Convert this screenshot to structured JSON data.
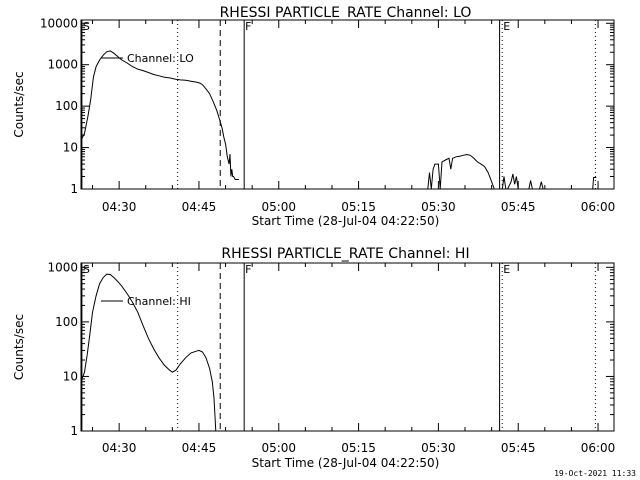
{
  "footer": {
    "timestamp": "19-Oct-2021 11:33"
  },
  "chart_data": [
    {
      "type": "line",
      "title": "RHESSI PARTICLE_RATE Channel: LO",
      "ylabel": "Counts/sec",
      "xlabel": "Start Time (28-Jul-04 04:22:50)",
      "y_scale": "log",
      "ylim": [
        1,
        12000
      ],
      "xlim": [
        "04:22:50",
        "06:03:00"
      ],
      "yticks": [
        1,
        10,
        100,
        1000,
        10000
      ],
      "yticklabels": [
        "1",
        "10",
        "100",
        "1000",
        "10000"
      ],
      "xticks": [
        "04:30",
        "04:45",
        "05:00",
        "05:15",
        "05:30",
        "05:45",
        "06:00"
      ],
      "legend": "Channel: LO",
      "markers": [
        {
          "time": "04:23:00",
          "label": "S",
          "style": "solid"
        },
        {
          "time": "04:41:00",
          "label": "",
          "style": "dotted"
        },
        {
          "time": "04:49:00",
          "label": "",
          "style": "dashed"
        },
        {
          "time": "04:53:30",
          "label": "F",
          "style": "solid"
        },
        {
          "time": "05:41:30",
          "label": "",
          "style": "solid"
        },
        {
          "time": "05:42:00",
          "label": "E",
          "style": "dotted"
        },
        {
          "time": "05:59:30",
          "label": "",
          "style": "dotted"
        }
      ],
      "series": [
        {
          "segments": [
            [
              [
                "04:22:50",
                15
              ],
              [
                "04:23:30",
                22
              ],
              [
                "04:24:10",
                60
              ],
              [
                "04:24:40",
                150
              ],
              [
                "04:25:10",
                500
              ],
              [
                "04:25:40",
                900
              ],
              [
                "04:26:20",
                1300
              ],
              [
                "04:27:00",
                1700
              ],
              [
                "04:27:40",
                2050
              ],
              [
                "04:28:20",
                2150
              ],
              [
                "04:29:00",
                1900
              ],
              [
                "04:29:40",
                1600
              ],
              [
                "04:30:30",
                1300
              ],
              [
                "04:31:30",
                1100
              ],
              [
                "04:32:30",
                900
              ],
              [
                "04:33:30",
                780
              ],
              [
                "04:34:30",
                720
              ],
              [
                "04:35:30",
                650
              ],
              [
                "04:36:30",
                580
              ],
              [
                "04:37:30",
                540
              ],
              [
                "04:38:30",
                500
              ],
              [
                "04:39:30",
                480
              ],
              [
                "04:40:30",
                450
              ],
              [
                "04:41:30",
                430
              ],
              [
                "04:42:30",
                420
              ],
              [
                "04:43:30",
                400
              ],
              [
                "04:44:30",
                380
              ],
              [
                "04:45:10",
                360
              ],
              [
                "04:45:40",
                330
              ],
              [
                "04:46:20",
                260
              ],
              [
                "04:47:00",
                200
              ],
              [
                "04:47:40",
                130
              ],
              [
                "04:48:20",
                80
              ],
              [
                "04:48:50",
                50
              ],
              [
                "04:49:20",
                30
              ],
              [
                "04:49:40",
                18
              ],
              [
                "04:50:00",
                12
              ],
              [
                "04:50:20",
                6
              ],
              [
                "04:50:40",
                4
              ],
              [
                "04:50:50",
                7
              ],
              [
                "04:51:00",
                2
              ],
              [
                "04:51:10",
                3
              ],
              [
                "04:51:20",
                2
              ],
              [
                "04:51:30",
                2
              ],
              [
                "04:51:50",
                1.7
              ],
              [
                "04:52:30",
                1.7
              ]
            ],
            [
              [
                "05:28:00",
                1
              ],
              [
                "05:28:20",
                2.5
              ],
              [
                "05:28:40",
                1
              ],
              [
                "05:29:00",
                3
              ],
              [
                "05:29:20",
                4
              ],
              [
                "05:30:00",
                4
              ],
              [
                "05:30:20",
                1
              ],
              [
                "05:30:40",
                4.5
              ],
              [
                "05:31:20",
                5
              ],
              [
                "05:32:00",
                5.5
              ],
              [
                "05:32:20",
                3
              ],
              [
                "05:32:40",
                5.5
              ],
              [
                "05:33:20",
                6
              ],
              [
                "05:34:00",
                6.2
              ],
              [
                "05:34:40",
                6.5
              ],
              [
                "05:35:20",
                6.8
              ],
              [
                "05:36:00",
                6.5
              ],
              [
                "05:36:40",
                5.5
              ],
              [
                "05:37:20",
                4.5
              ],
              [
                "05:38:00",
                4
              ],
              [
                "05:38:40",
                3.5
              ],
              [
                "05:39:20",
                2.5
              ],
              [
                "05:40:00",
                1.5
              ],
              [
                "05:40:30",
                1
              ]
            ],
            [
              [
                "05:42:00",
                1
              ],
              [
                "05:42:20",
                2
              ],
              [
                "05:42:40",
                1
              ],
              [
                "05:43:00",
                1
              ],
              [
                "05:43:40",
                1.5
              ],
              [
                "05:44:00",
                2.3
              ],
              [
                "05:44:20",
                1.3
              ],
              [
                "05:44:40",
                2
              ],
              [
                "05:45:00",
                1
              ],
              [
                "05:47:00",
                1
              ],
              [
                "05:47:20",
                1.6
              ],
              [
                "05:47:40",
                1
              ],
              [
                "05:49:00",
                1
              ],
              [
                "05:49:20",
                1.5
              ],
              [
                "05:49:40",
                1
              ]
            ],
            [
              [
                "05:59:00",
                1
              ],
              [
                "05:59:10",
                1.9
              ],
              [
                "05:59:40",
                1.9
              ]
            ]
          ]
        }
      ]
    },
    {
      "type": "line",
      "title": "RHESSI PARTICLE_RATE Channel: HI",
      "ylabel": "Counts/sec",
      "xlabel": "Start Time (28-Jul-04 04:22:50)",
      "y_scale": "log",
      "ylim": [
        1,
        1200
      ],
      "xlim": [
        "04:22:50",
        "06:03:00"
      ],
      "yticks": [
        1,
        10,
        100,
        1000
      ],
      "yticklabels": [
        "1",
        "10",
        "100",
        "1000"
      ],
      "xticks": [
        "04:30",
        "04:45",
        "05:00",
        "05:15",
        "05:30",
        "05:45",
        "06:00"
      ],
      "legend": "Channel: HI",
      "markers": [
        {
          "time": "04:23:00",
          "label": "S",
          "style": "solid"
        },
        {
          "time": "04:41:00",
          "label": "",
          "style": "dotted"
        },
        {
          "time": "04:49:00",
          "label": "",
          "style": "dashed"
        },
        {
          "time": "04:53:30",
          "label": "F",
          "style": "solid"
        },
        {
          "time": "05:41:30",
          "label": "",
          "style": "solid"
        },
        {
          "time": "05:42:00",
          "label": "E",
          "style": "dotted"
        },
        {
          "time": "05:59:30",
          "label": "",
          "style": "dotted"
        }
      ],
      "series": [
        {
          "segments": [
            [
              [
                "04:22:50",
                8
              ],
              [
                "04:23:30",
                12
              ],
              [
                "04:24:00",
                25
              ],
              [
                "04:24:30",
                60
              ],
              [
                "04:25:00",
                150
              ],
              [
                "04:25:40",
                300
              ],
              [
                "04:26:20",
                500
              ],
              [
                "04:27:00",
                650
              ],
              [
                "04:27:40",
                750
              ],
              [
                "04:28:20",
                740
              ],
              [
                "04:29:00",
                650
              ],
              [
                "04:29:40",
                560
              ],
              [
                "04:30:30",
                450
              ],
              [
                "04:31:30",
                330
              ],
              [
                "04:32:30",
                230
              ],
              [
                "04:33:30",
                150
              ],
              [
                "04:34:30",
                85
              ],
              [
                "04:35:30",
                50
              ],
              [
                "04:36:30",
                32
              ],
              [
                "04:37:30",
                22
              ],
              [
                "04:38:30",
                16
              ],
              [
                "04:39:30",
                13
              ],
              [
                "04:40:00",
                12
              ],
              [
                "04:40:40",
                13
              ],
              [
                "04:41:30",
                17
              ],
              [
                "04:42:30",
                22
              ],
              [
                "04:43:30",
                27
              ],
              [
                "04:44:30",
                29
              ],
              [
                "04:45:00",
                30
              ],
              [
                "04:45:40",
                28
              ],
              [
                "04:46:20",
                22
              ],
              [
                "04:47:00",
                14
              ],
              [
                "04:47:30",
                8
              ],
              [
                "04:47:50",
                4
              ],
              [
                "04:48:00",
                2
              ],
              [
                "04:48:10",
                1
              ]
            ]
          ]
        }
      ]
    }
  ]
}
